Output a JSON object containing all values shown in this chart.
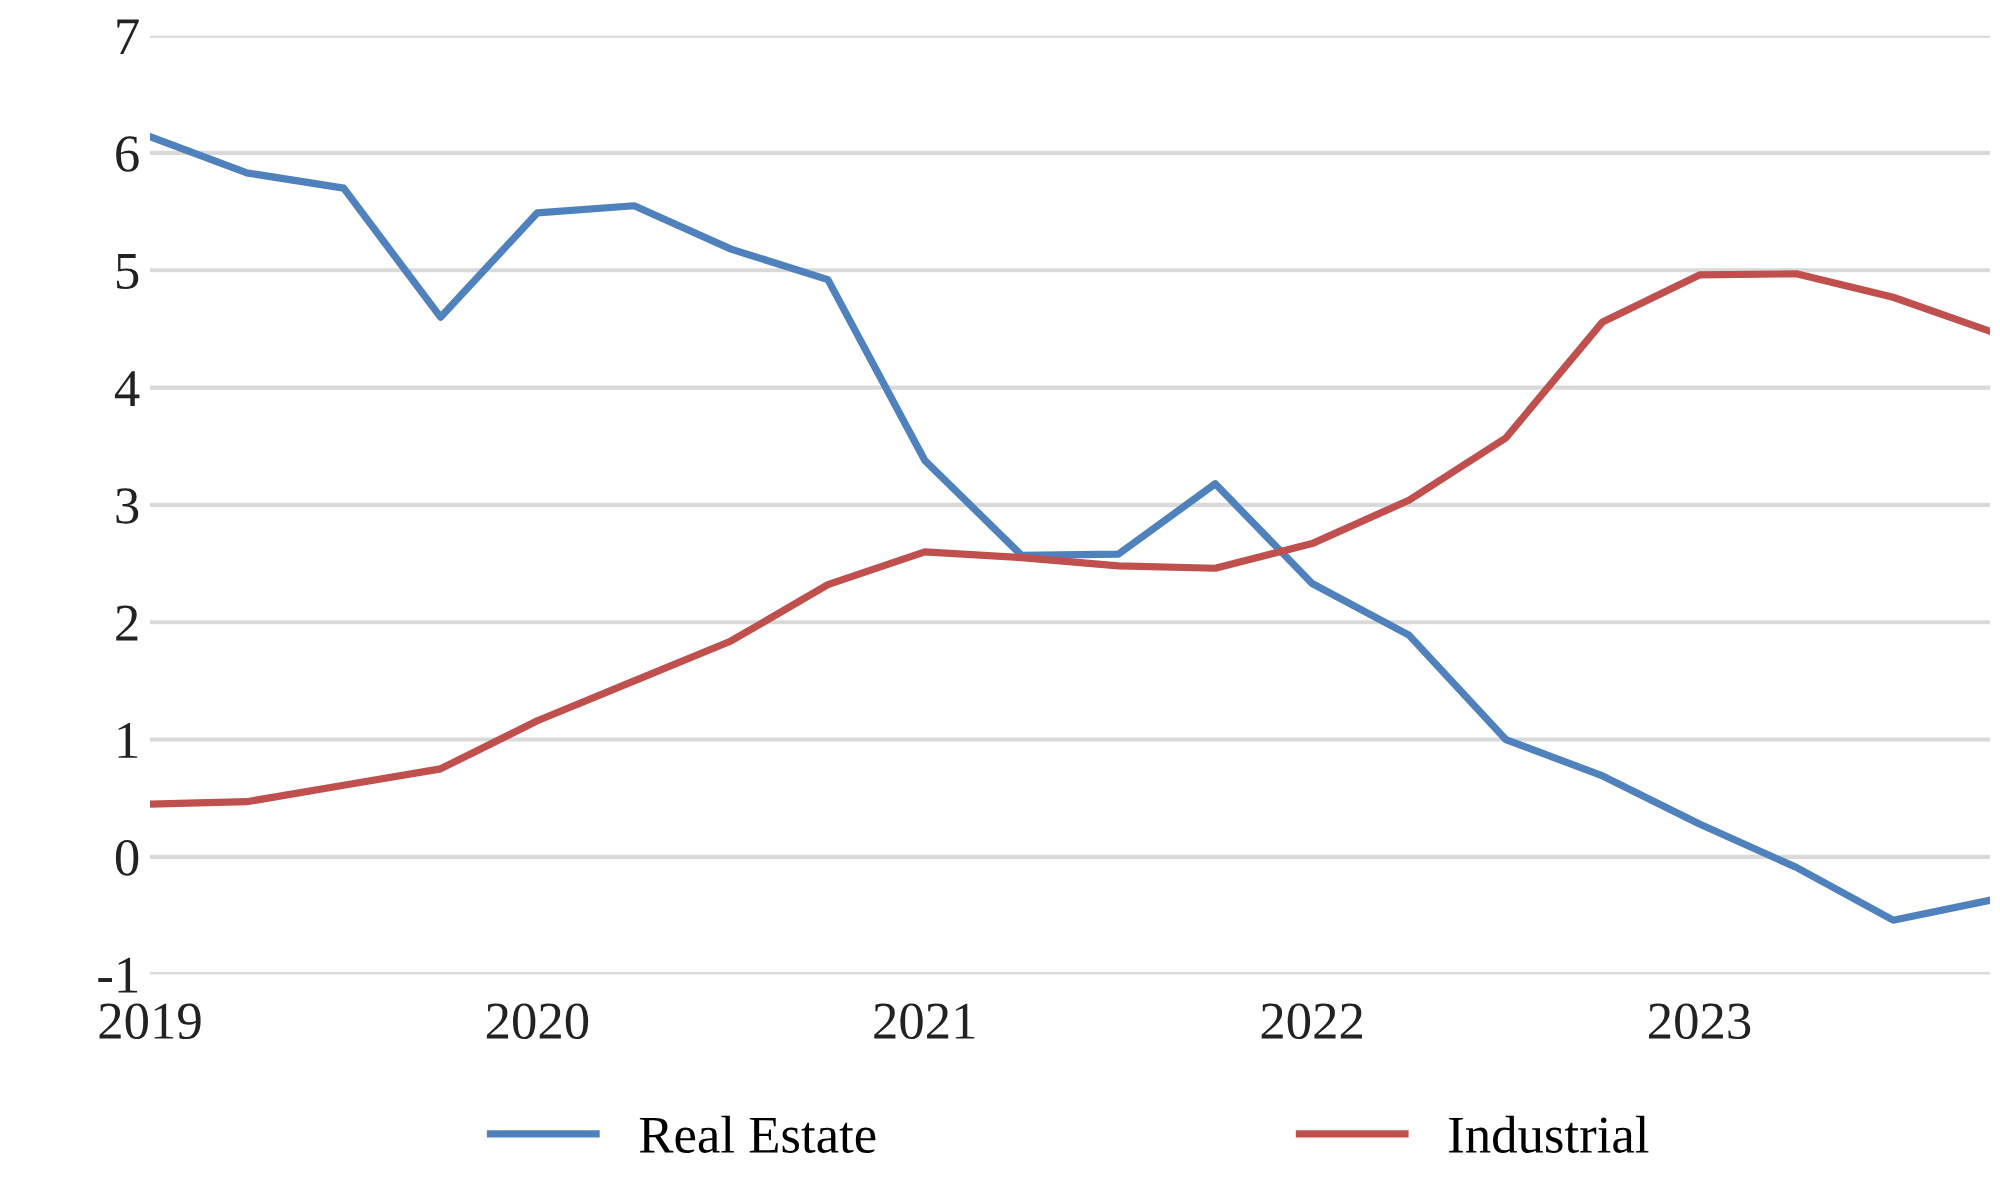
{
  "chart_data": {
    "type": "line",
    "x": [
      2019,
      2019.25,
      2019.5,
      2019.75,
      2020,
      2020.25,
      2020.5,
      2020.75,
      2021,
      2021.25,
      2021.5,
      2021.75,
      2022,
      2022.25,
      2022.5,
      2022.75,
      2023,
      2023.25,
      2023.5,
      2023.75
    ],
    "series": [
      {
        "name": "Real Estate",
        "color": "#4f81bd",
        "values": [
          6.14,
          5.83,
          5.7,
          4.6,
          5.49,
          5.55,
          5.18,
          4.92,
          3.38,
          2.57,
          2.58,
          3.18,
          2.33,
          1.89,
          1.0,
          0.69,
          0.28,
          -0.09,
          -0.54,
          -0.37
        ]
      },
      {
        "name": "Industrial",
        "color": "#c0504d",
        "values": [
          0.45,
          0.47,
          0.61,
          0.75,
          1.16,
          1.5,
          1.84,
          2.32,
          2.6,
          2.55,
          2.48,
          2.46,
          2.67,
          3.04,
          3.57,
          4.56,
          4.96,
          4.97,
          4.77,
          4.48
        ]
      }
    ],
    "xlim": [
      2019,
      2023.75
    ],
    "xticks": [
      2019,
      2020,
      2021,
      2022,
      2023
    ],
    "ylim": [
      -1,
      7
    ],
    "yticks": [
      -1,
      0,
      1,
      2,
      3,
      4,
      5,
      6,
      7
    ],
    "grid": "y",
    "legend": "bottom",
    "marker": "none",
    "line_style": "solid"
  }
}
